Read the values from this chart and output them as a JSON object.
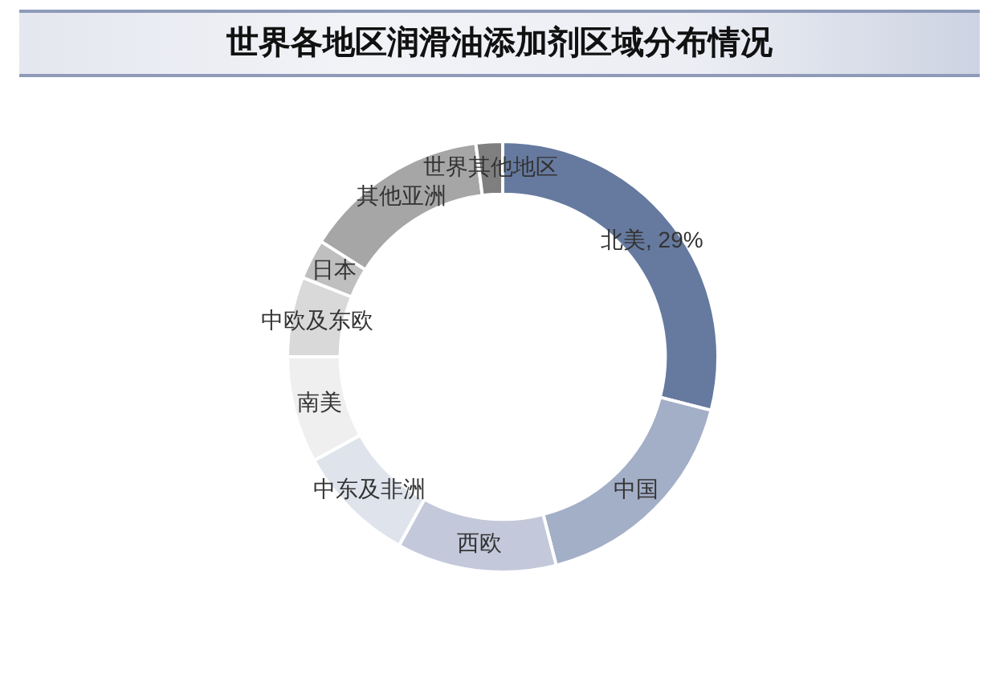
{
  "chart_data": {
    "type": "donut",
    "title": "世界各地区润滑油添加剂区域分布情况",
    "categories": [
      "北美",
      "中国",
      "西欧",
      "中东及非洲",
      "南美",
      "中欧及东欧",
      "日本",
      "其他亚洲",
      "世界其他地区"
    ],
    "values": [
      29,
      17,
      12,
      9,
      8,
      6,
      3,
      14,
      2
    ],
    "colors": [
      "#667a9f",
      "#a3afc7",
      "#c3c9da",
      "#dfe3ec",
      "#efefef",
      "#d9d9d9",
      "#bfbfbf",
      "#a6a6a6",
      "#7f7f7f"
    ],
    "value_labels": [
      "29%",
      null,
      null,
      null,
      null,
      null,
      null,
      null,
      null
    ]
  }
}
